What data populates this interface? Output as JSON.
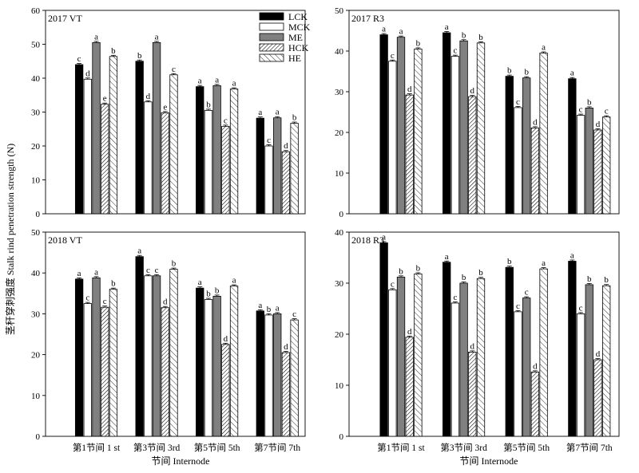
{
  "figure": {
    "ylabel": "茎秆穿刺强度 Stalk rind penetration strength (N)",
    "xlabel": "节间 Internode"
  },
  "legend": {
    "items": [
      "LCK",
      "MCK",
      "ME",
      "HCK",
      "HE"
    ]
  },
  "chart_data": [
    {
      "type": "bar",
      "title": "2017   VT",
      "categories": [
        "第1节间 1 st",
        "第3节间 3rd",
        "第5节间 5th",
        "第7节间 7th"
      ],
      "ylim": [
        0,
        60
      ],
      "yticks": [
        0,
        10,
        20,
        30,
        40,
        50,
        60
      ],
      "series": [
        {
          "name": "LCK",
          "values": [
            44.0,
            45.0,
            37.5,
            28.2
          ],
          "letters": [
            "c",
            "b",
            "a",
            "a"
          ]
        },
        {
          "name": "MCK",
          "values": [
            39.7,
            33.0,
            30.5,
            20.0
          ],
          "letters": [
            "d",
            "d",
            "b",
            "c"
          ]
        },
        {
          "name": "ME",
          "values": [
            50.5,
            50.5,
            37.8,
            28.3
          ],
          "letters": [
            "a",
            "a",
            "a",
            "a"
          ]
        },
        {
          "name": "HCK",
          "values": [
            32.3,
            29.8,
            25.8,
            18.3
          ],
          "letters": [
            "e",
            "e",
            "c",
            "d"
          ]
        },
        {
          "name": "HE",
          "values": [
            46.4,
            41.0,
            36.8,
            26.7
          ],
          "letters": [
            "b",
            "c",
            "a",
            "b"
          ]
        }
      ]
    },
    {
      "type": "bar",
      "title": "2017   R3",
      "categories": [
        "第1节间 1 st",
        "第3节间 3rd",
        "第5节间 5th",
        "第7节间 7th"
      ],
      "ylim": [
        0,
        50
      ],
      "yticks": [
        0,
        10,
        20,
        30,
        40,
        50
      ],
      "series": [
        {
          "name": "LCK",
          "values": [
            44.0,
            44.5,
            33.8,
            33.2
          ],
          "letters": [
            "a",
            "a",
            "b",
            "a"
          ]
        },
        {
          "name": "MCK",
          "values": [
            37.5,
            38.7,
            26.1,
            24.2
          ],
          "letters": [
            "c",
            "c",
            "c",
            "c"
          ]
        },
        {
          "name": "ME",
          "values": [
            43.4,
            42.5,
            33.4,
            26.0
          ],
          "letters": [
            "a",
            "b",
            "b",
            "b"
          ]
        },
        {
          "name": "HCK",
          "values": [
            29.2,
            28.8,
            21.1,
            20.6
          ],
          "letters": [
            "d",
            "d",
            "d",
            "d"
          ]
        },
        {
          "name": "HE",
          "values": [
            40.5,
            42.0,
            39.5,
            23.8
          ],
          "letters": [
            "b",
            "b",
            "a",
            "c"
          ]
        }
      ]
    },
    {
      "type": "bar",
      "title": "2018   VT",
      "categories": [
        "第1节间 1 st",
        "第3节间 3rd",
        "第5节间 5th",
        "第7节间 7th"
      ],
      "ylim": [
        0,
        50
      ],
      "yticks": [
        0,
        10,
        20,
        30,
        40,
        50
      ],
      "series": [
        {
          "name": "LCK",
          "values": [
            38.5,
            44.0,
            36.3,
            30.7
          ],
          "letters": [
            "a",
            "a",
            "a",
            "a"
          ]
        },
        {
          "name": "MCK",
          "values": [
            32.5,
            39.3,
            33.5,
            29.7
          ],
          "letters": [
            "c",
            "c",
            "b",
            "b"
          ]
        },
        {
          "name": "ME",
          "values": [
            38.8,
            39.3,
            34.3,
            30.0
          ],
          "letters": [
            "a",
            "c",
            "b",
            "a"
          ]
        },
        {
          "name": "HCK",
          "values": [
            31.6,
            31.5,
            22.5,
            20.5
          ],
          "letters": [
            "c",
            "d",
            "d",
            "d"
          ]
        },
        {
          "name": "HE",
          "values": [
            36.0,
            40.9,
            36.8,
            28.5
          ],
          "letters": [
            "b",
            "b",
            "a",
            "c"
          ]
        }
      ]
    },
    {
      "type": "bar",
      "title": "2018   R3",
      "categories": [
        "第1节间 1 st",
        "第3节间 3rd",
        "第5节间 5th",
        "第7节间 7th"
      ],
      "ylim": [
        0,
        40
      ],
      "yticks": [
        0,
        10,
        20,
        30,
        40
      ],
      "series": [
        {
          "name": "LCK",
          "values": [
            37.9,
            34.1,
            33.1,
            34.3
          ],
          "letters": [
            "a",
            "a",
            "b",
            "a"
          ]
        },
        {
          "name": "MCK",
          "values": [
            28.7,
            26.1,
            24.4,
            24.0
          ],
          "letters": [
            "c",
            "c",
            "c",
            "c"
          ]
        },
        {
          "name": "ME",
          "values": [
            31.2,
            30.0,
            27.1,
            29.7
          ],
          "letters": [
            "b",
            "b",
            "c",
            "b"
          ]
        },
        {
          "name": "HCK",
          "values": [
            19.4,
            16.5,
            12.6,
            15.0
          ],
          "letters": [
            "d",
            "d",
            "d",
            "d"
          ]
        },
        {
          "name": "HE",
          "values": [
            31.8,
            30.9,
            32.8,
            29.5
          ],
          "letters": [
            "b",
            "b",
            "a",
            "b"
          ]
        }
      ]
    }
  ]
}
